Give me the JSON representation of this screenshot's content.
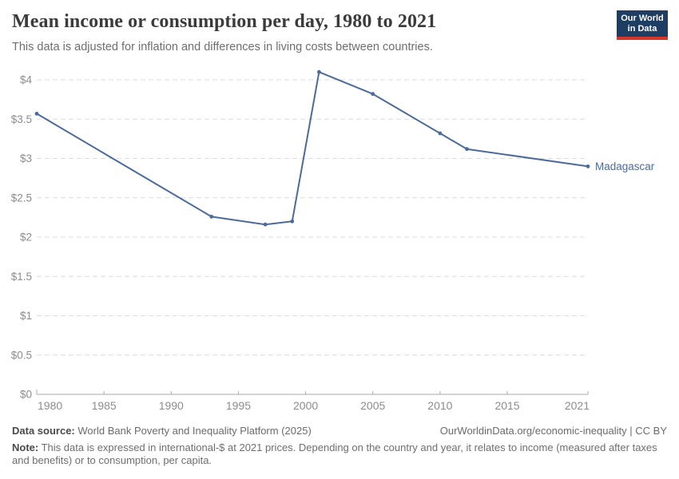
{
  "header": {
    "title": "Mean income or consumption per day, 1980 to 2021",
    "subtitle": "This data is adjusted for inflation and differences in living costs between countries."
  },
  "logo": {
    "line1": "Our World",
    "line2": "in Data",
    "bg_color": "#1d3d63",
    "bar_color": "#d7362b"
  },
  "chart_data": {
    "type": "line",
    "title": "Mean income or consumption per day, 1980 to 2021",
    "xlabel": "",
    "ylabel": "",
    "xlim": [
      1980,
      2021
    ],
    "ylim": [
      0,
      4.2
    ],
    "grid": "dashed horizontal gridlines",
    "legend_position": "label at end of line",
    "axis_color": "#a8a8a8",
    "grid_color": "#dcdcdc",
    "tick_text_color": "#8c8c8c",
    "x_ticks": [
      {
        "year": 1980,
        "label": "1980"
      },
      {
        "year": 1985,
        "label": "1985"
      },
      {
        "year": 1990,
        "label": "1990"
      },
      {
        "year": 1995,
        "label": "1995"
      },
      {
        "year": 2000,
        "label": "2000"
      },
      {
        "year": 2005,
        "label": "2005"
      },
      {
        "year": 2010,
        "label": "2010"
      },
      {
        "year": 2015,
        "label": "2015"
      },
      {
        "year": 2021,
        "label": "2021"
      }
    ],
    "y_ticks": [
      {
        "value": 0,
        "label": "$0"
      },
      {
        "value": 0.5,
        "label": "$0.5"
      },
      {
        "value": 1,
        "label": "$1"
      },
      {
        "value": 1.5,
        "label": "$1.5"
      },
      {
        "value": 2,
        "label": "$2"
      },
      {
        "value": 2.5,
        "label": "$2.5"
      },
      {
        "value": 3,
        "label": "$3"
      },
      {
        "value": 3.5,
        "label": "$3.5"
      },
      {
        "value": 4,
        "label": "$4"
      }
    ],
    "series": [
      {
        "name": "Madagascar",
        "color": "#4C6A9C",
        "points": [
          {
            "x": 1980,
            "y": 3.57
          },
          {
            "x": 1993,
            "y": 2.26
          },
          {
            "x": 1997,
            "y": 2.16
          },
          {
            "x": 1999,
            "y": 2.2
          },
          {
            "x": 2001,
            "y": 4.1
          },
          {
            "x": 2005,
            "y": 3.82
          },
          {
            "x": 2010,
            "y": 3.32
          },
          {
            "x": 2012,
            "y": 3.12
          },
          {
            "x": 2021,
            "y": 2.9
          }
        ]
      }
    ]
  },
  "footer": {
    "datasource_label": "Data source:",
    "datasource_value": "World Bank Poverty and Inequality Platform (2025)",
    "link": "OurWorldinData.org/economic-inequality",
    "separator": "|",
    "license": "CC BY",
    "note_label": "Note:",
    "note_value": "This data is expressed in international-$ at 2021 prices. Depending on the country and year, it relates to income (measured after taxes and benefits) or to consumption, per capita."
  }
}
